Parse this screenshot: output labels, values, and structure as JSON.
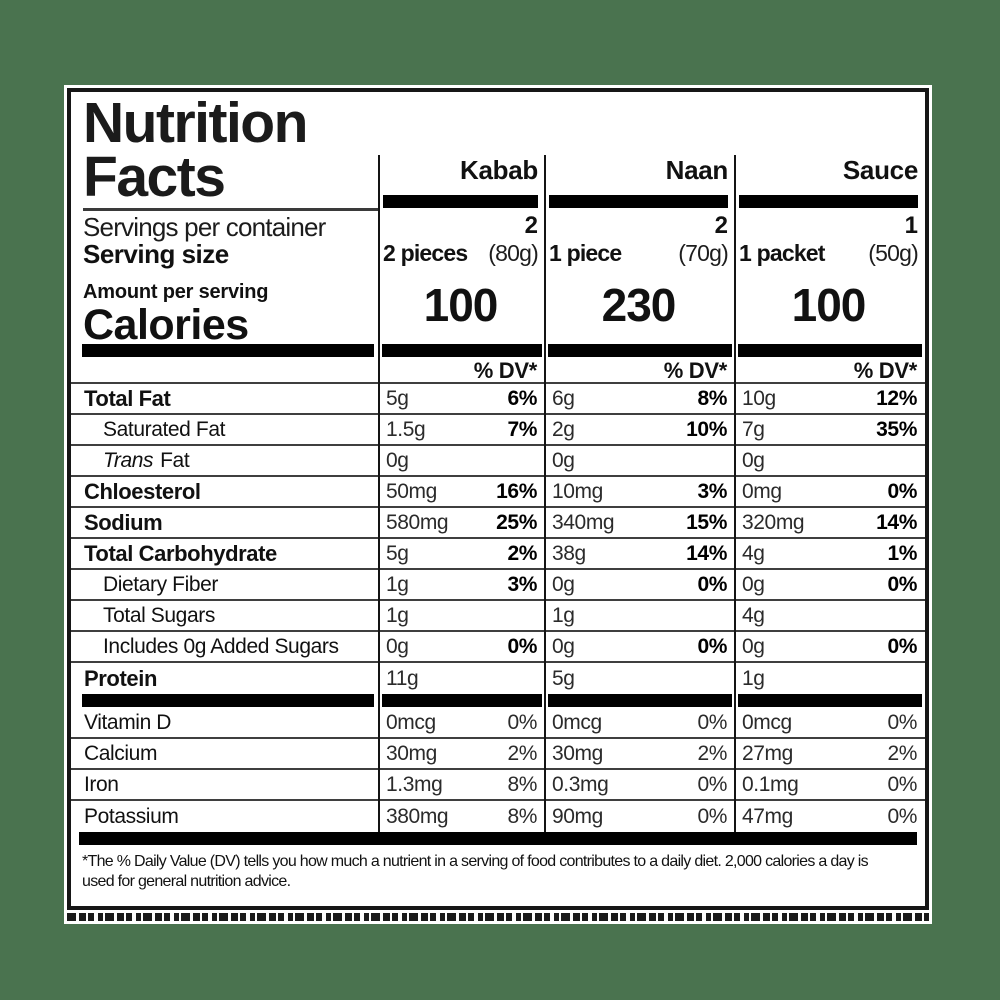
{
  "colors": {
    "background": "#4a734f",
    "label_background": "#ffffff",
    "text": "#111111",
    "bar": "#000000"
  },
  "label": {
    "title_line1": "Nutrition",
    "title_line2": "Facts",
    "servings_per_container_label": "Servings per container",
    "serving_size_label": "Serving size",
    "amount_per_serving_label": "Amount per serving",
    "calories_label": "Calories",
    "dv_header": "% DV*",
    "products": [
      {
        "name": "Kabab",
        "servings_per_container": "2",
        "serving_size": "2 pieces",
        "serving_weight": "(80g)",
        "calories": "100"
      },
      {
        "name": "Naan",
        "servings_per_container": "2",
        "serving_size": "1 piece",
        "serving_weight": "(70g)",
        "calories": "230"
      },
      {
        "name": "Sauce",
        "servings_per_container": "1",
        "serving_size": "1 packet",
        "serving_weight": "(50g)",
        "calories": "100"
      }
    ],
    "nutrient_rows": [
      {
        "label": "Total Fat",
        "style": "bold",
        "cells": [
          {
            "amount": "5g",
            "dv": "6%"
          },
          {
            "amount": "6g",
            "dv": "8%"
          },
          {
            "amount": "10g",
            "dv": "12%"
          }
        ]
      },
      {
        "label": "Saturated Fat",
        "style": "indent",
        "cells": [
          {
            "amount": "1.5g",
            "dv": "7%"
          },
          {
            "amount": "2g",
            "dv": "10%"
          },
          {
            "amount": "7g",
            "dv": "35%"
          }
        ]
      },
      {
        "label": "Fat",
        "label_italic_prefix": "Trans",
        "style": "indent",
        "cells": [
          {
            "amount": "0g",
            "dv": ""
          },
          {
            "amount": "0g",
            "dv": ""
          },
          {
            "amount": "0g",
            "dv": ""
          }
        ]
      },
      {
        "label": "Chloesterol",
        "style": "bold",
        "cells": [
          {
            "amount": "50mg",
            "dv": "16%"
          },
          {
            "amount": "10mg",
            "dv": "3%"
          },
          {
            "amount": "0mg",
            "dv": "0%"
          }
        ]
      },
      {
        "label": "Sodium",
        "style": "bold",
        "cells": [
          {
            "amount": "580mg",
            "dv": "25%"
          },
          {
            "amount": "340mg",
            "dv": "15%"
          },
          {
            "amount": "320mg",
            "dv": "14%"
          }
        ]
      },
      {
        "label": "Total Carbohydrate",
        "style": "bold",
        "cells": [
          {
            "amount": "5g",
            "dv": "2%"
          },
          {
            "amount": "38g",
            "dv": "14%"
          },
          {
            "amount": "4g",
            "dv": "1%"
          }
        ]
      },
      {
        "label": "Dietary Fiber",
        "style": "indent",
        "cells": [
          {
            "amount": "1g",
            "dv": "3%"
          },
          {
            "amount": "0g",
            "dv": "0%"
          },
          {
            "amount": "0g",
            "dv": "0%"
          }
        ]
      },
      {
        "label": "Total Sugars",
        "style": "indent",
        "cells": [
          {
            "amount": "1g",
            "dv": ""
          },
          {
            "amount": "1g",
            "dv": ""
          },
          {
            "amount": "4g",
            "dv": ""
          }
        ]
      },
      {
        "label": "Includes 0g Added Sugars",
        "style": "indent",
        "cells": [
          {
            "amount": "0g",
            "dv": "0%"
          },
          {
            "amount": "0g",
            "dv": "0%"
          },
          {
            "amount": "0g",
            "dv": "0%"
          }
        ]
      },
      {
        "label": "Protein",
        "style": "bold",
        "cells": [
          {
            "amount": "11g",
            "dv": ""
          },
          {
            "amount": "5g",
            "dv": ""
          },
          {
            "amount": "1g",
            "dv": ""
          }
        ]
      }
    ],
    "vitamin_rows": [
      {
        "label": "Vitamin D",
        "cells": [
          {
            "amount": "0mcg",
            "dv": "0%"
          },
          {
            "amount": "0mcg",
            "dv": "0%"
          },
          {
            "amount": "0mcg",
            "dv": "0%"
          }
        ]
      },
      {
        "label": "Calcium",
        "cells": [
          {
            "amount": "30mg",
            "dv": "2%"
          },
          {
            "amount": "30mg",
            "dv": "2%"
          },
          {
            "amount": "27mg",
            "dv": "2%"
          }
        ]
      },
      {
        "label": "Iron",
        "cells": [
          {
            "amount": "1.3mg",
            "dv": "8%"
          },
          {
            "amount": "0.3mg",
            "dv": "0%"
          },
          {
            "amount": "0.1mg",
            "dv": "0%"
          }
        ]
      },
      {
        "label": "Potassium",
        "cells": [
          {
            "amount": "380mg",
            "dv": "8%"
          },
          {
            "amount": "90mg",
            "dv": "0%"
          },
          {
            "amount": "47mg",
            "dv": "0%"
          }
        ]
      }
    ],
    "footnote": "*The % Daily Value (DV) tells you how much a nutrient in a serving of food contributes to a daily diet. 2,000 calories a day is used for general nutrition advice."
  }
}
